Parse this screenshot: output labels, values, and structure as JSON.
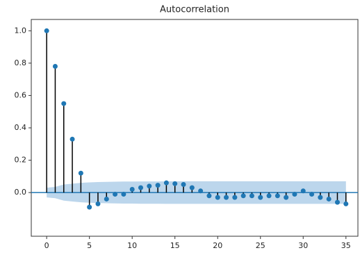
{
  "chart_data": {
    "type": "stem",
    "title": "Autocorrelation",
    "x": [
      0,
      1,
      2,
      3,
      4,
      5,
      6,
      7,
      8,
      9,
      10,
      11,
      12,
      13,
      14,
      15,
      16,
      17,
      18,
      19,
      20,
      21,
      22,
      23,
      24,
      25,
      26,
      27,
      28,
      29,
      30,
      31,
      32,
      33,
      34,
      35
    ],
    "values": [
      1.0,
      0.78,
      0.55,
      0.33,
      0.12,
      -0.09,
      -0.07,
      -0.04,
      -0.01,
      -0.01,
      0.02,
      0.03,
      0.04,
      0.045,
      0.06,
      0.055,
      0.05,
      0.03,
      0.01,
      -0.02,
      -0.03,
      -0.03,
      -0.03,
      -0.02,
      -0.02,
      -0.03,
      -0.02,
      -0.02,
      -0.03,
      -0.01,
      0.01,
      -0.01,
      -0.03,
      -0.04,
      -0.06,
      -0.07
    ],
    "confidence": [
      0.03,
      0.035,
      0.05,
      0.055,
      0.06,
      0.063,
      0.065,
      0.066,
      0.067,
      0.068,
      0.068,
      0.069,
      0.069,
      0.069,
      0.07,
      0.07,
      0.07,
      0.07,
      0.07,
      0.07,
      0.07,
      0.07,
      0.07,
      0.07,
      0.07,
      0.07,
      0.07,
      0.07,
      0.07,
      0.07,
      0.07,
      0.07,
      0.07,
      0.07,
      0.07,
      0.07
    ],
    "color": "#1f77b4",
    "stem_color": "#000000",
    "band_color": "#a6c8e6",
    "xlim": [
      -1.8,
      36.4
    ],
    "ylim": [
      -0.27,
      1.07
    ],
    "xticks": [
      0,
      5,
      10,
      15,
      20,
      25,
      30,
      35
    ],
    "yticks": [
      {
        "value": 0,
        "label": "0.0"
      },
      0.2,
      0.4,
      0.6,
      0.8,
      {
        "value": 1,
        "label": "1.0"
      }
    ]
  }
}
